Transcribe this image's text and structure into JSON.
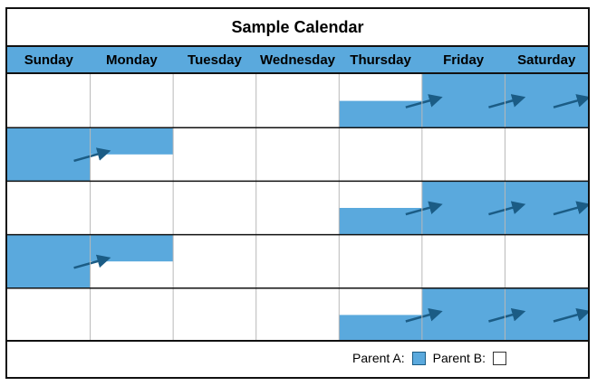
{
  "calendar": {
    "title": "Sample Calendar",
    "days": [
      "Sunday",
      "Monday",
      "Tuesday",
      "Wednesday",
      "Thursday",
      "Friday",
      "Saturday"
    ],
    "weeks": 5,
    "custody": [
      {
        "week": 1,
        "parent_a_starts": "Thursday",
        "parent_a_ends": "Saturday"
      },
      {
        "week": 2,
        "parent_a_starts": "Sunday",
        "parent_a_ends": "Monday"
      },
      {
        "week": 3,
        "parent_a_starts": "Thursday",
        "parent_a_ends": "Saturday"
      },
      {
        "week": 4,
        "parent_a_starts": "Sunday",
        "parent_a_ends": "Monday"
      },
      {
        "week": 5,
        "parent_a_starts": "Thursday",
        "parent_a_ends": "Saturday"
      }
    ]
  },
  "legend": {
    "parent_a_label": "Parent A:",
    "parent_b_label": "Parent B:"
  },
  "colors": {
    "parent_a": "#5aa9dd",
    "arrow": "#1b5c85",
    "parent_b": "#ffffff"
  }
}
